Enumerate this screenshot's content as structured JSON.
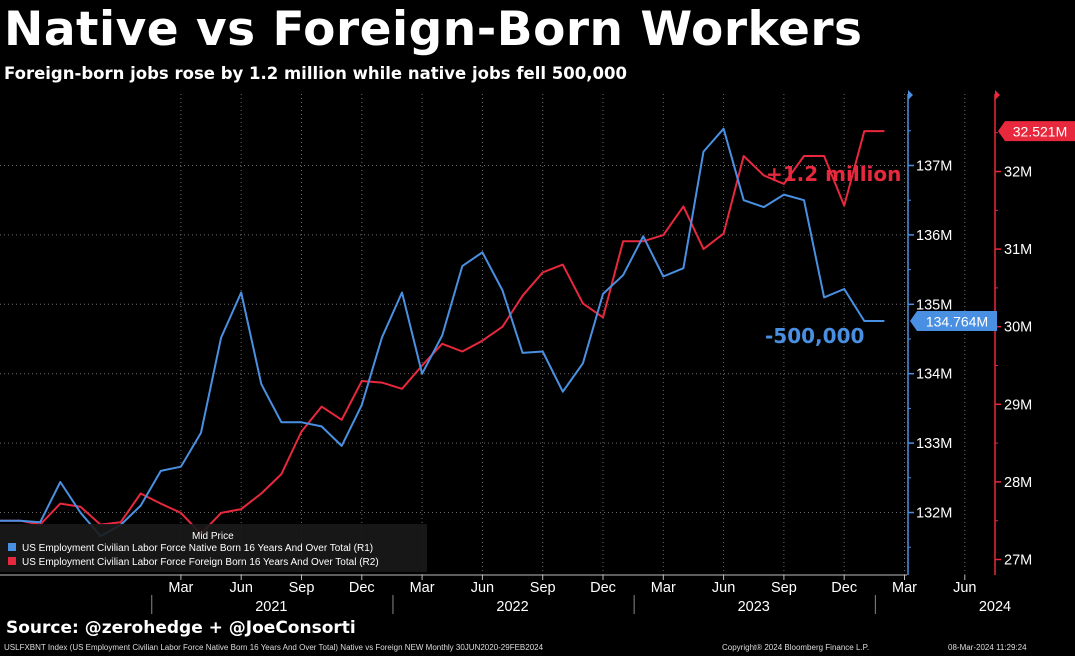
{
  "title": "Native vs Foreign-Born Workers",
  "subtitle": "Foreign-born jobs rose by 1.2 million while native jobs fell 500,000",
  "source": "Source: @zerohedge + @JoeConsorti",
  "footer": {
    "left": "USLFXBNT Index (US Employment Civilian Labor Force Native Born 16 Years And Over Total) Native vs Foreign NEW  Monthly 30JUN2020-29FEB2024",
    "center": "Copyright® 2024 Bloomberg Finance L.P.",
    "right": "08-Mar-2024 11:29:24"
  },
  "colors": {
    "native": "#4a90e2",
    "foreign": "#e8283c",
    "background": "#000000"
  },
  "chart_data": {
    "type": "line",
    "legend_title": "Mid Price",
    "legend_position": "bottom-left",
    "grid": true,
    "x": [
      "2020-06",
      "2020-07",
      "2020-08",
      "2020-09",
      "2020-10",
      "2020-11",
      "2020-12",
      "2021-01",
      "2021-02",
      "2021-03",
      "2021-04",
      "2021-05",
      "2021-06",
      "2021-07",
      "2021-08",
      "2021-09",
      "2021-10",
      "2021-11",
      "2021-12",
      "2022-01",
      "2022-02",
      "2022-03",
      "2022-04",
      "2022-05",
      "2022-06",
      "2022-07",
      "2022-08",
      "2022-09",
      "2022-10",
      "2022-11",
      "2022-12",
      "2023-01",
      "2023-02",
      "2023-03",
      "2023-04",
      "2023-05",
      "2023-06",
      "2023-07",
      "2023-08",
      "2023-09",
      "2023-10",
      "2023-11",
      "2023-12",
      "2024-01",
      "2024-02"
    ],
    "x_ticks": {
      "months": [
        "Mar",
        "Jun",
        "Sep",
        "Dec",
        "Mar",
        "Jun",
        "Sep",
        "Dec",
        "Mar",
        "Jun",
        "Sep",
        "Dec",
        "Mar",
        "Jun"
      ],
      "years": [
        "2021",
        "2022",
        "2023",
        "2024"
      ]
    },
    "y_left": {
      "ticks": [
        "132M",
        "133M",
        "134M",
        "135M",
        "136M",
        "137M"
      ],
      "range": [
        131.1,
        138.0
      ]
    },
    "y_right": {
      "ticks": [
        "27M",
        "28M",
        "29M",
        "30M",
        "31M",
        "32M"
      ],
      "range": [
        26.84,
        33.05
      ]
    },
    "series": [
      {
        "name": "US Employment Civilian Labor Force Native Born 16 Years And Over Total  (R1)",
        "axis": "left",
        "last_label": "134.764M",
        "values": [
          131.88,
          131.88,
          131.86,
          132.44,
          132.0,
          131.66,
          131.82,
          132.1,
          132.6,
          132.66,
          133.15,
          134.52,
          135.17,
          133.85,
          133.3,
          133.3,
          133.24,
          132.96,
          133.55,
          134.52,
          135.17,
          134.0,
          134.55,
          135.55,
          135.75,
          135.2,
          134.3,
          134.32,
          133.74,
          134.15,
          135.15,
          135.42,
          135.98,
          135.4,
          135.52,
          137.2,
          137.53,
          136.5,
          136.4,
          136.58,
          136.5,
          135.1,
          135.22,
          134.76,
          134.76
        ],
        "data_labels": [
          {
            "text": "-500,000"
          }
        ]
      },
      {
        "name": "US Employment Civilian Labor Force Foreign Born 16 Years And Over Total  (R2)",
        "axis": "right",
        "last_label": "32.521M",
        "values": [
          27.5,
          27.5,
          27.45,
          27.72,
          27.68,
          27.45,
          27.48,
          27.85,
          27.72,
          27.6,
          27.33,
          27.6,
          27.65,
          27.85,
          28.1,
          28.65,
          28.97,
          28.8,
          29.3,
          29.28,
          29.2,
          29.5,
          29.78,
          29.68,
          29.82,
          30.0,
          30.4,
          30.7,
          30.8,
          30.3,
          30.12,
          31.1,
          31.1,
          31.18,
          31.55,
          31.0,
          31.2,
          32.2,
          31.95,
          31.84,
          32.2,
          32.2,
          31.56,
          32.52,
          32.52
        ],
        "data_labels": [
          {
            "text": "+1.2 million"
          }
        ]
      }
    ]
  }
}
